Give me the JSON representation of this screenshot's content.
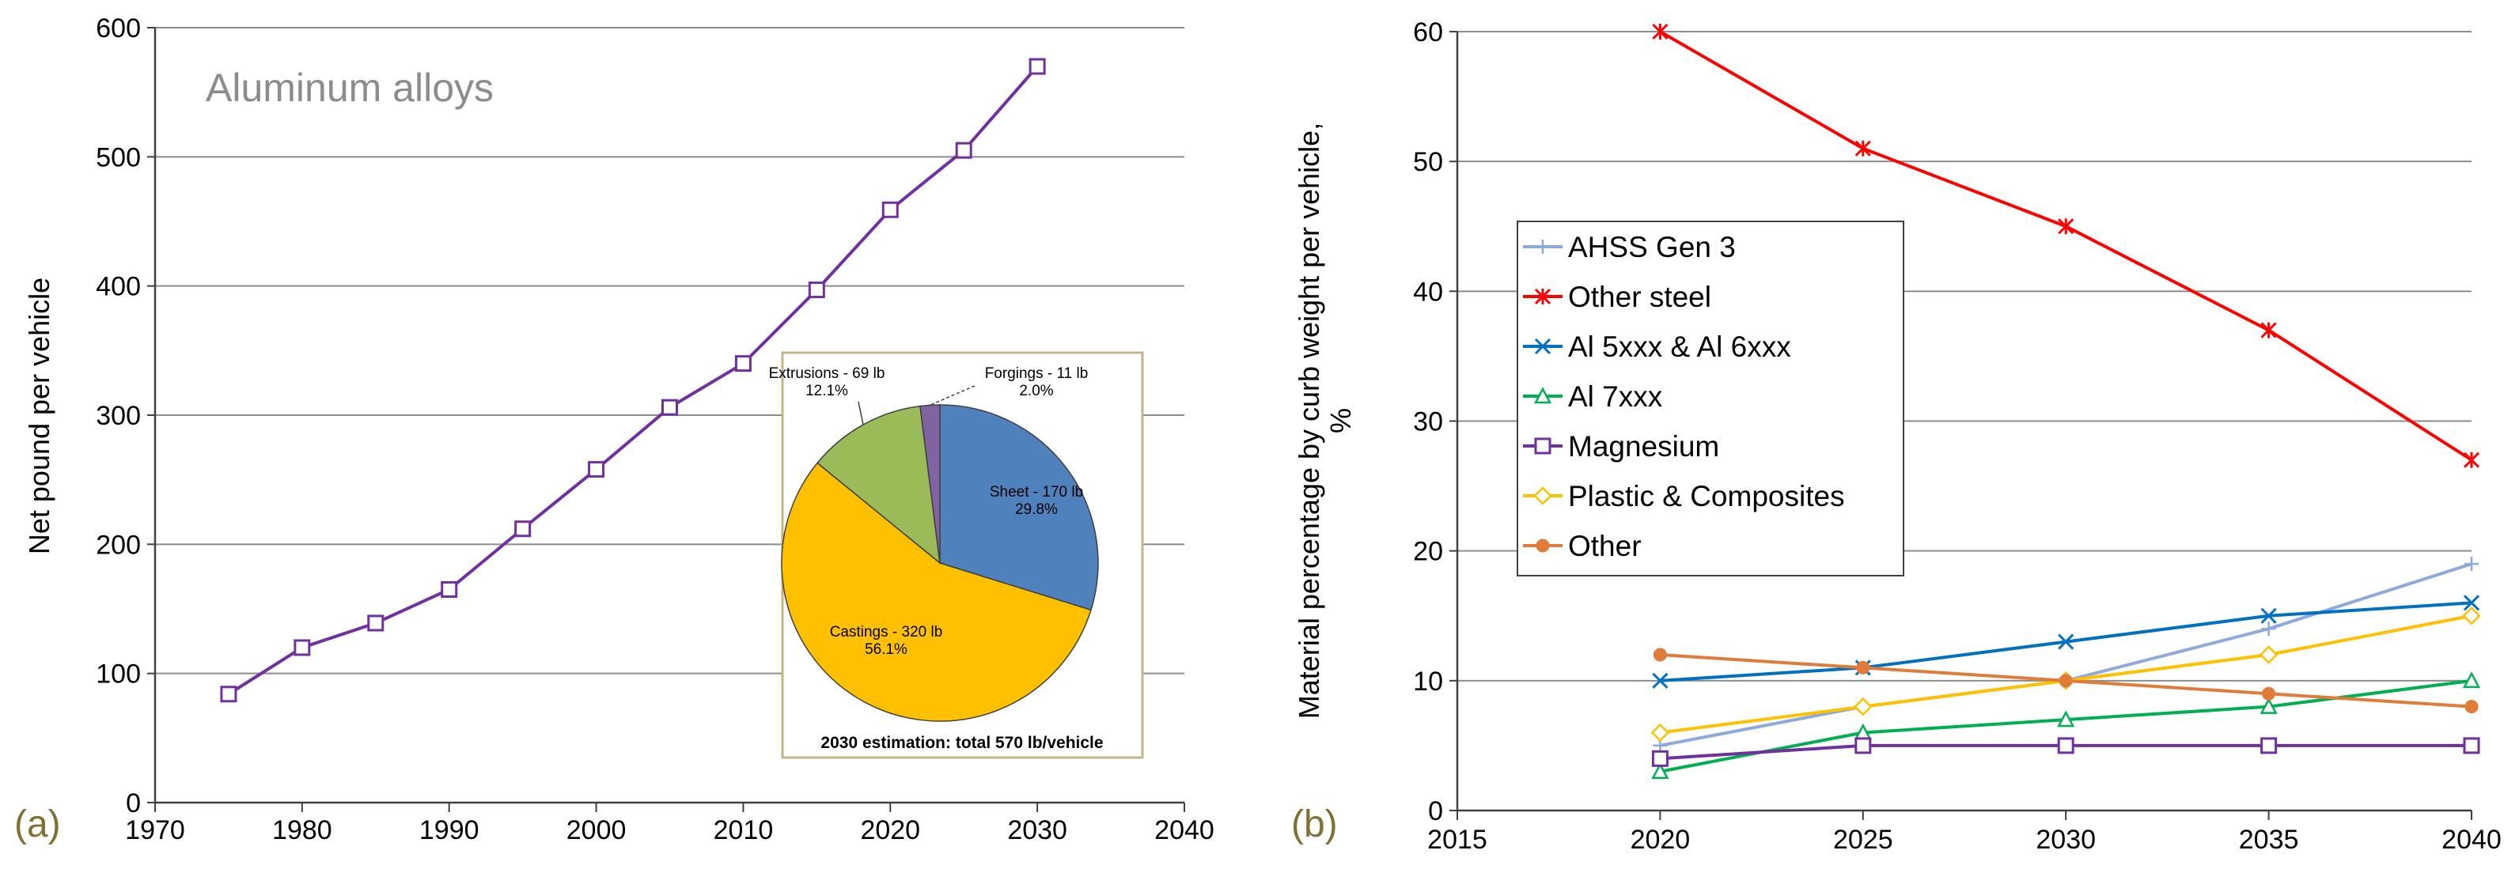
{
  "chart_data": [
    {
      "type": "line",
      "panel_label": "(a)",
      "title": "Aluminum alloys",
      "xlabel": "",
      "ylabel": "Net pound per vehicle",
      "xlim": [
        1970,
        2040
      ],
      "ylim": [
        0,
        600
      ],
      "x_ticks": [
        "1970",
        "1980",
        "1990",
        "2000",
        "2010",
        "2020",
        "2030",
        "2040"
      ],
      "y_ticks": [
        "0",
        "100",
        "200",
        "300",
        "400",
        "500",
        "600"
      ],
      "grid": true,
      "series": [
        {
          "name": "Aluminum alloys",
          "color": "#7030A0",
          "marker": "square-open",
          "x": [
            1975,
            1980,
            1985,
            1990,
            1995,
            2000,
            2005,
            2010,
            2015,
            2020,
            2025,
            2030
          ],
          "values": [
            84,
            120,
            139,
            165,
            212,
            258,
            306,
            340,
            397,
            459,
            505,
            570
          ]
        }
      ],
      "inset": {
        "type": "pie",
        "caption": "2030 estimation: total 570 lb/vehicle",
        "slices": [
          {
            "name": "Sheet",
            "label": "Sheet - 170 lb",
            "pct_label": "29.8%",
            "value": 29.8,
            "color": "#4F81BD"
          },
          {
            "name": "Castings",
            "label": "Castings - 320 lb",
            "pct_label": "56.1%",
            "value": 56.1,
            "color": "#FFC000"
          },
          {
            "name": "Extrusions",
            "label": "Extrusions - 69  lb",
            "pct_label": "12.1%",
            "value": 12.1,
            "color": "#9BBB59"
          },
          {
            "name": "Forgings",
            "label": "Forgings - 11 lb",
            "pct_label": "2.0%",
            "value": 2.0,
            "color": "#8064A2"
          }
        ]
      }
    },
    {
      "type": "line",
      "panel_label": "(b)",
      "title": "",
      "xlabel": "",
      "ylabel_lines": [
        "Material percentage by curb weight per vehicle,",
        "%"
      ],
      "xlim": [
        2015,
        2040
      ],
      "ylim": [
        0,
        60
      ],
      "x_ticks": [
        "2015",
        "2020",
        "2025",
        "2030",
        "2035",
        "2040"
      ],
      "y_ticks": [
        "0",
        "10",
        "20",
        "30",
        "40",
        "50",
        "60"
      ],
      "grid": true,
      "legend_position": "upper-left",
      "x": [
        2020,
        2025,
        2030,
        2035,
        2040
      ],
      "series": [
        {
          "name": "AHSS Gen 3",
          "color": "#8EA9DB",
          "marker": "plus",
          "values": [
            5,
            8,
            10,
            14,
            19
          ]
        },
        {
          "name": "Other steel",
          "color": "#FF0000",
          "marker": "star",
          "values": [
            60,
            51,
            45,
            37,
            27
          ]
        },
        {
          "name": "Al 5xxx & Al 6xxx",
          "color": "#0070C0",
          "marker": "x",
          "values": [
            10,
            11,
            13,
            15,
            16
          ]
        },
        {
          "name": "Al 7xxx",
          "color": "#00B050",
          "marker": "triangle-open",
          "values": [
            3,
            6,
            7,
            8,
            10
          ]
        },
        {
          "name": "Magnesium",
          "color": "#7030A0",
          "marker": "square-open",
          "values": [
            4,
            5,
            5,
            5,
            5
          ]
        },
        {
          "name": "Plastic & Composites",
          "color": "#FFC000",
          "marker": "diamond-open",
          "values": [
            6,
            8,
            10,
            12,
            15
          ]
        },
        {
          "name": "Other",
          "color": "#E07B39",
          "marker": "circle-filled",
          "values": [
            12,
            11,
            10,
            9,
            8
          ]
        }
      ]
    }
  ]
}
